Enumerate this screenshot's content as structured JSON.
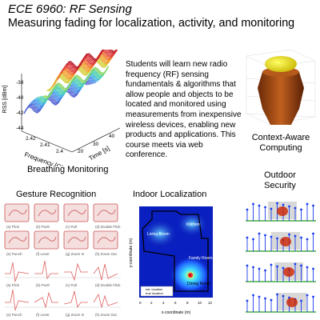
{
  "header": {
    "title": "ECE 6960: RF Sensing",
    "subtitle": "Measuring fading for localization, activity, and monitoring"
  },
  "description": "Students will learn new radio frequency (RF) sensing fundamentals & algorithms that allow people and objects to be located and monitored using measurements from inexpensive wireless devices, enabling new products and applications. This course meets via web conference.",
  "panels": {
    "breathing": {
      "caption": "Breathing Monitoring",
      "zlabel": "RSS [dBm]",
      "xlabel": "Frequency [GHz]",
      "ylabel": "Time [s]",
      "z_ticks": [
        "-38",
        "-40",
        "-42",
        "-44"
      ],
      "x_ticks": [
        "2.42",
        "2.41",
        "2.4"
      ],
      "y_ticks": [
        "20",
        "30",
        "40"
      ]
    },
    "context": {
      "caption": "Context-Aware Computing"
    },
    "gesture": {
      "caption": "Gesture Recognition",
      "labels": [
        "(a) Flick",
        "(b) Push",
        "(c) Pull",
        "(d) Double Flick",
        "(e) Punch",
        "(f) Lever",
        "(g) Zoom In",
        "(h) Zoom Out"
      ]
    },
    "indoor": {
      "caption": "Indoor Localization",
      "room_labels": [
        "Living Room",
        "Kitchen",
        "Family Room",
        "Dining Room"
      ],
      "legend": [
        "est. location",
        "true location"
      ],
      "xlabel": "x-coordinate (m)",
      "ylabel": "y-coordinate (m)",
      "x_ticks": [
        "0",
        "2",
        "4",
        "6",
        "8",
        "10",
        "12"
      ],
      "y_ticks": [
        "12",
        "10",
        "8",
        "6",
        "4",
        "2",
        "0"
      ]
    },
    "outdoor": {
      "caption": "Outdoor Security"
    }
  },
  "colors": {
    "accent_red": "#cc2200",
    "heat_blue": "#0a1fbf",
    "pin_blue": "#1a3cf0",
    "bronze": "#a34a18"
  }
}
